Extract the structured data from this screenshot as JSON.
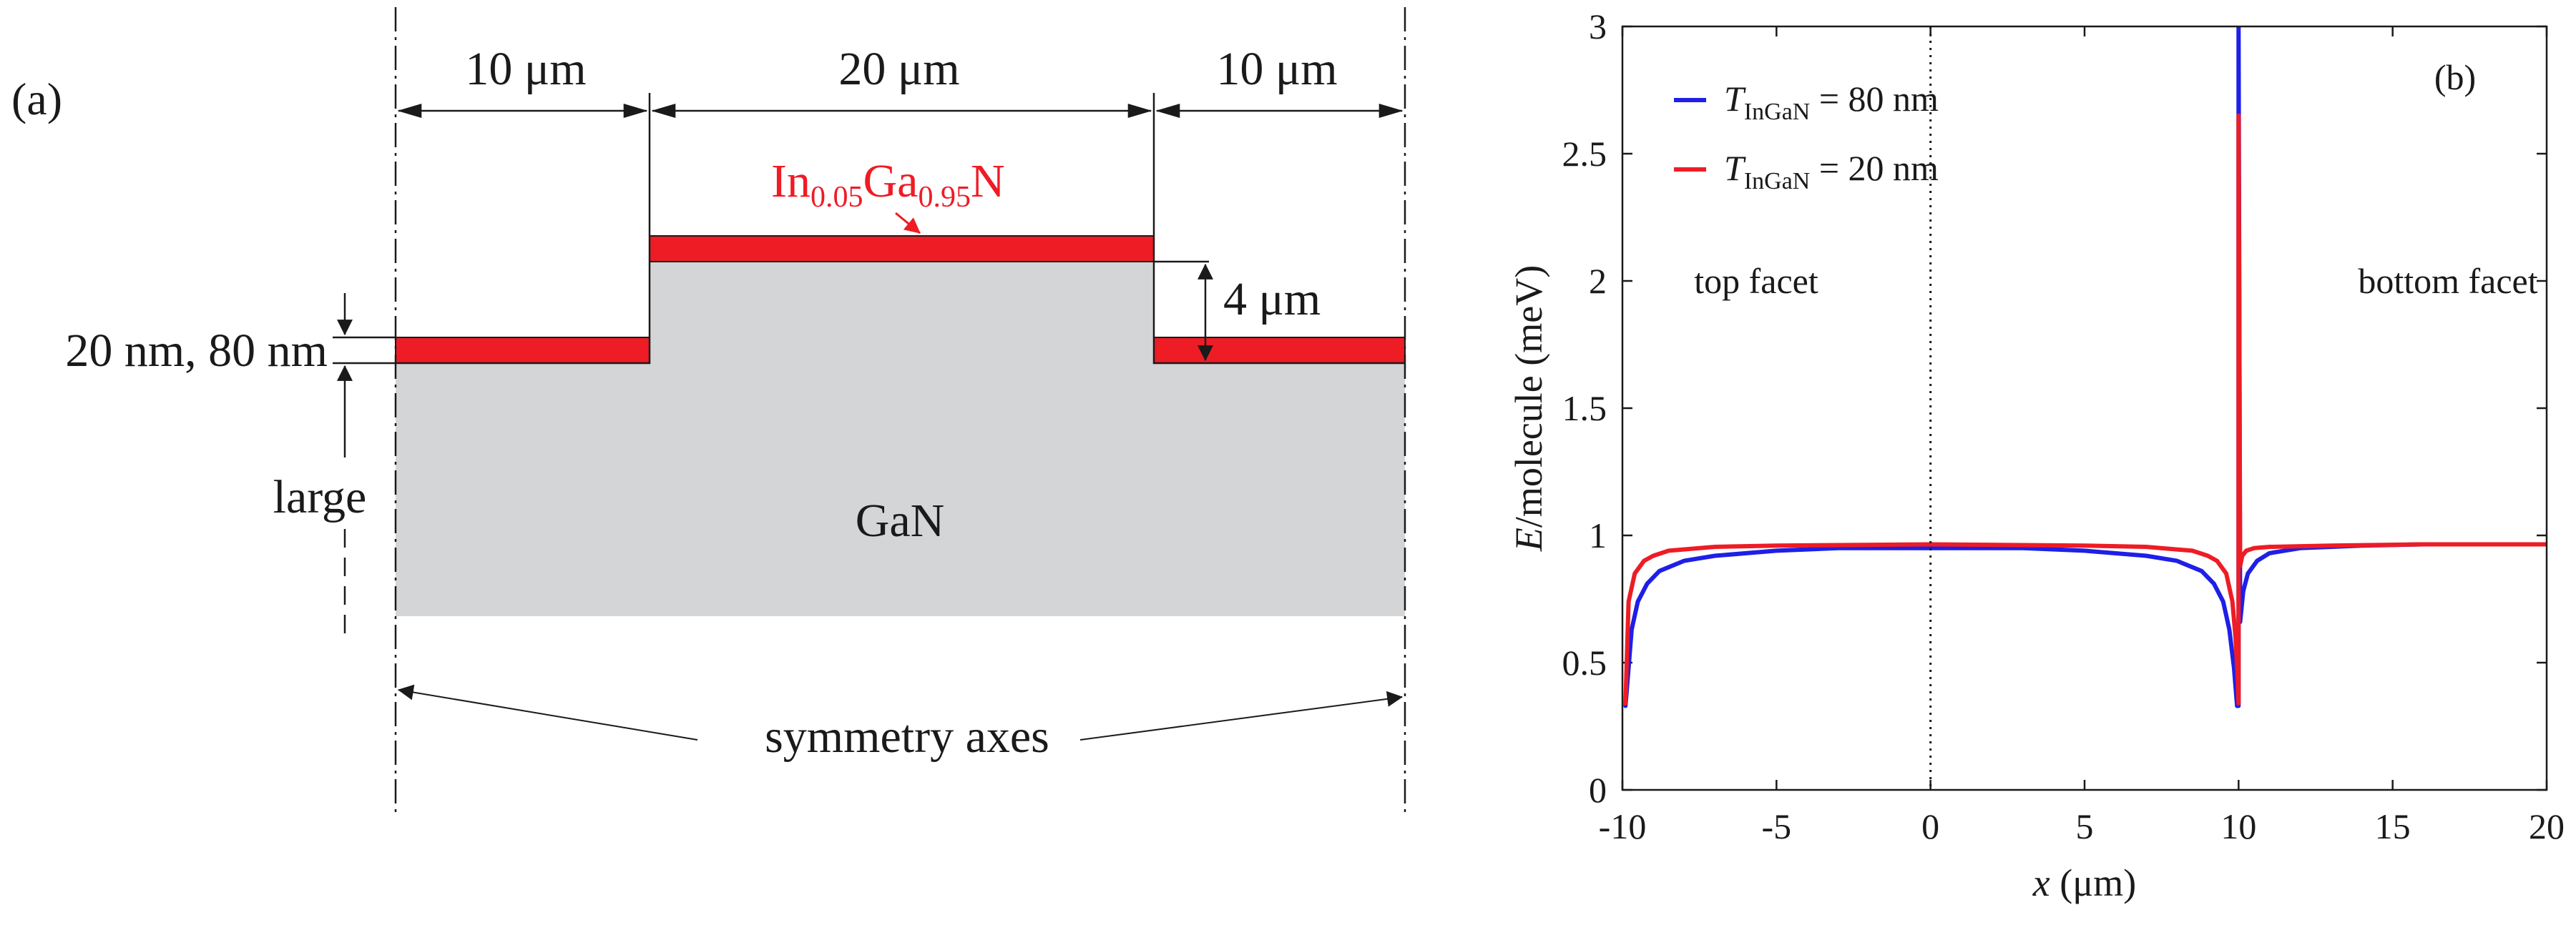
{
  "panel_a": {
    "panel_label": "(a)",
    "dims": {
      "left": "10 μm",
      "middle": "20 μm",
      "right": "10 μm"
    },
    "layer_label": {
      "base1": "In",
      "sub1": "0.05",
      "base2": "Ga",
      "sub2": "0.95",
      "base3": "N"
    },
    "step_height": "4 μm",
    "thickness": "20 nm, 80 nm",
    "depth_label": "large",
    "substrate_label": "GaN",
    "axes_label": "symmetry axes",
    "colors": {
      "layer": "#ee1c25",
      "substrate": "#d4d5d7",
      "line": "#1a1a1a"
    }
  },
  "chart_data": {
    "type": "line",
    "panel_label": "(b)",
    "xlabel": {
      "var": "x",
      "rest": " (μm)"
    },
    "ylabel": {
      "var": "E",
      "rest": "/molecule (meV)"
    },
    "xlim": [
      -10,
      20
    ],
    "ylim": [
      0,
      3
    ],
    "xticks": [
      "-10",
      "-5",
      "0",
      "5",
      "10",
      "15",
      "20"
    ],
    "yticks": [
      "0",
      "0.5",
      "1",
      "1.5",
      "2",
      "2.5",
      "3"
    ],
    "annotations": {
      "top": "top facet",
      "bottom": "bottom facet"
    },
    "legend_position": "top-left",
    "series": [
      {
        "name": "T_InGaN = 80 nm",
        "legend": {
          "var": "T",
          "sub": "InGaN",
          "rest": " = 80 nm"
        },
        "color": "#1f1fe6",
        "x": [
          -9.9,
          -9.7,
          -9.5,
          -9.2,
          -8.8,
          -8,
          -7,
          -5,
          -3,
          0,
          3,
          5,
          7,
          8,
          8.8,
          9.2,
          9.5,
          9.7,
          9.85,
          9.95,
          10.0,
          10.0,
          10.05,
          10.15,
          10.3,
          10.6,
          11,
          12,
          14,
          16,
          20
        ],
        "y": [
          0.33,
          0.63,
          0.74,
          0.81,
          0.86,
          0.9,
          0.92,
          0.94,
          0.95,
          0.95,
          0.95,
          0.94,
          0.92,
          0.9,
          0.86,
          0.81,
          0.74,
          0.63,
          0.48,
          0.33,
          0.33,
          3.0,
          0.66,
          0.78,
          0.85,
          0.9,
          0.93,
          0.95,
          0.96,
          0.965,
          0.965
        ]
      },
      {
        "name": "T_InGaN = 20 nm",
        "legend": {
          "var": "T",
          "sub": "InGaN",
          "rest": " = 20 nm"
        },
        "color": "#ee1c25",
        "x": [
          -9.9,
          -9.8,
          -9.6,
          -9.3,
          -9,
          -8.5,
          -7,
          -5,
          0,
          5,
          7,
          8.5,
          9,
          9.3,
          9.6,
          9.8,
          9.9,
          9.97,
          10.0,
          10.0,
          10.05,
          10.12,
          10.25,
          10.5,
          11,
          13,
          16,
          20
        ],
        "y": [
          0.34,
          0.74,
          0.85,
          0.9,
          0.92,
          0.94,
          0.955,
          0.96,
          0.965,
          0.96,
          0.955,
          0.94,
          0.92,
          0.9,
          0.85,
          0.74,
          0.6,
          0.45,
          0.34,
          2.65,
          0.88,
          0.92,
          0.94,
          0.95,
          0.955,
          0.96,
          0.965,
          0.965
        ]
      }
    ]
  }
}
